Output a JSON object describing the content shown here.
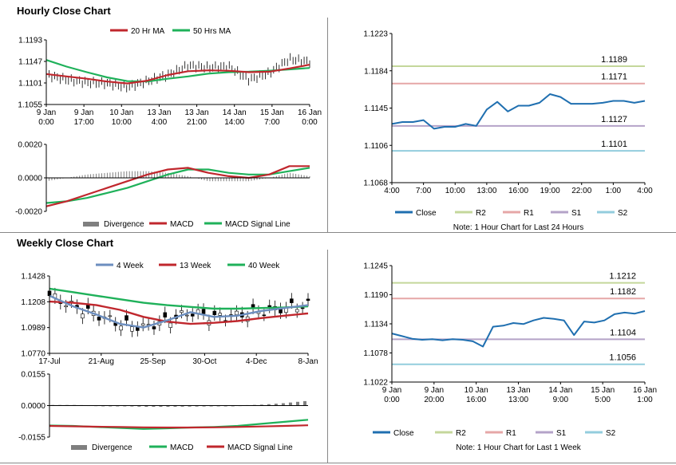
{
  "titles": {
    "hourly": "Hourly Close Chart",
    "weekly": "Weekly Close Chart"
  },
  "colors": {
    "ma20": "#c0272d",
    "ma50": "#1fb15a",
    "ma4": "#6c8ebf",
    "close": "#1f6fb0",
    "r2": "#c4d79b",
    "r1": "#e6a7a7",
    "s1": "#b4a3c8",
    "s2": "#93cddd",
    "divergence": "#7f7f7f",
    "candle": "#000000"
  },
  "chart_data": [
    {
      "id": "hourly_price",
      "type": "line",
      "x_ticks": [
        "9 Jan\n0:00",
        "9 Jan\n17:00",
        "10 Jan\n10:00",
        "13 Jan\n4:00",
        "13 Jan\n21:00",
        "14 Jan\n14:00",
        "15 Jan\n7:00",
        "16 Jan\n0:00"
      ],
      "y_ticks": [
        "1.1193",
        "1.1147",
        "1.1101",
        "1.1055"
      ],
      "ylim": [
        1.1055,
        1.1193
      ],
      "legend": [
        "20 Hr MA",
        "50 Hrs MA"
      ],
      "series": [
        {
          "name": "20 Hr MA",
          "values": [
            1.112,
            1.1115,
            1.111,
            1.1104,
            1.11,
            1.1106,
            1.1118,
            1.1126,
            1.1128,
            1.1127,
            1.1124,
            1.1125,
            1.1132,
            1.114
          ]
        },
        {
          "name": "50 Hrs MA",
          "values": [
            1.115,
            1.1136,
            1.1124,
            1.1113,
            1.1105,
            1.1104,
            1.111,
            1.1115,
            1.1121,
            1.1124,
            1.1125,
            1.1127,
            1.113,
            1.1133
          ]
        },
        {
          "name": "price",
          "values": [
            1.1118,
            1.1108,
            1.1102,
            1.11,
            1.1092,
            1.1105,
            1.1118,
            1.1138,
            1.1134,
            1.1136,
            1.1108,
            1.1122,
            1.1152,
            1.1146
          ]
        }
      ]
    },
    {
      "id": "hourly_macd",
      "type": "line",
      "y_ticks": [
        "0.0020",
        "0.0000",
        "-0.0020"
      ],
      "ylim": [
        -0.002,
        0.002
      ],
      "legend": [
        "Divergence",
        "MACD",
        "MACD Signal Line"
      ],
      "series": [
        {
          "name": "MACD",
          "values": [
            -0.0017,
            -0.0014,
            -0.001,
            -0.0006,
            -0.0002,
            0.0002,
            0.0005,
            0.0006,
            0.0003,
            0.0001,
            0.0,
            0.0002,
            0.0007,
            0.0007
          ]
        },
        {
          "name": "MACD Signal Line",
          "values": [
            -0.0015,
            -0.0014,
            -0.0012,
            -0.0009,
            -0.0006,
            -0.0002,
            0.0002,
            0.0005,
            0.0005,
            0.0003,
            0.0002,
            0.0002,
            0.0004,
            0.0006
          ]
        },
        {
          "name": "Divergence",
          "values": [
            -0.0002,
            0.0,
            0.0002,
            0.0003,
            0.0004,
            0.0004,
            0.0003,
            0.0001,
            -0.0002,
            -0.0002,
            -0.0002,
            0.0,
            0.0003,
            0.0001
          ]
        }
      ]
    },
    {
      "id": "hourly_levels",
      "type": "line",
      "x_ticks": [
        "4:00",
        "7:00",
        "10:00",
        "13:00",
        "16:00",
        "19:00",
        "22:00",
        "1:00",
        "4:00"
      ],
      "y_ticks": [
        "1.1223",
        "1.1184",
        "1.1145",
        "1.1106",
        "1.1068"
      ],
      "ylim": [
        1.1068,
        1.1223
      ],
      "level_labels": [
        "1.1189",
        "1.1171",
        "1.1127",
        "1.1101"
      ],
      "levels": {
        "R2": 1.1189,
        "R1": 1.1171,
        "S1": 1.1127,
        "S2": 1.1101
      },
      "legend": [
        "Close",
        "R2",
        "R1",
        "S1",
        "S2"
      ],
      "note": "Note: 1 Hour Chart for Last 24 Hours",
      "series": [
        {
          "name": "Close",
          "values": [
            1.1129,
            1.1131,
            1.1131,
            1.1133,
            1.1124,
            1.1126,
            1.1126,
            1.1129,
            1.1127,
            1.1144,
            1.1152,
            1.1142,
            1.1148,
            1.1148,
            1.1151,
            1.116,
            1.1157,
            1.115,
            1.115,
            1.115,
            1.1151,
            1.1153,
            1.1153,
            1.1151,
            1.1153
          ]
        }
      ]
    },
    {
      "id": "weekly_price",
      "type": "line",
      "x_ticks": [
        "17-Jul",
        "21-Aug",
        "25-Sep",
        "30-Oct",
        "4-Dec",
        "8-Jan"
      ],
      "y_ticks": [
        "1.1428",
        "1.1208",
        "1.0989",
        "1.0770"
      ],
      "ylim": [
        1.077,
        1.1428
      ],
      "legend": [
        "4 Week",
        "13 Week",
        "40 Week"
      ],
      "series": [
        {
          "name": "4 Week",
          "values": [
            1.126,
            1.117,
            1.11,
            1.102,
            1.099,
            1.105,
            1.112,
            1.108,
            1.109,
            1.113,
            1.1155,
            1.118
          ]
        },
        {
          "name": "13 Week",
          "values": [
            1.121,
            1.12,
            1.118,
            1.114,
            1.108,
            1.104,
            1.102,
            1.103,
            1.1045,
            1.107,
            1.109,
            1.111
          ]
        },
        {
          "name": "40 Week",
          "values": [
            1.132,
            1.129,
            1.126,
            1.123,
            1.12,
            1.118,
            1.1165,
            1.115,
            1.115,
            1.1155,
            1.116,
            1.117
          ]
        }
      ]
    },
    {
      "id": "weekly_macd",
      "type": "line",
      "y_ticks": [
        "0.0155",
        "0.0000",
        "-0.0155"
      ],
      "ylim": [
        -0.0155,
        0.0155
      ],
      "legend": [
        "Divergence",
        "MACD",
        "MACD Signal Line"
      ],
      "series": [
        {
          "name": "MACD",
          "values": [
            -0.0098,
            -0.01,
            -0.0105,
            -0.011,
            -0.0115,
            -0.0112,
            -0.0108,
            -0.0105,
            -0.01,
            -0.009,
            -0.008,
            -0.007
          ]
        },
        {
          "name": "MACD Signal Line",
          "values": [
            -0.01,
            -0.0102,
            -0.0104,
            -0.0105,
            -0.0107,
            -0.0108,
            -0.0108,
            -0.0107,
            -0.0105,
            -0.0103,
            -0.01,
            -0.0097
          ]
        },
        {
          "name": "Divergence",
          "values": [
            0.0003,
            0.0003,
            0.0001,
            -0.0003,
            -0.0006,
            -0.0006,
            -0.0005,
            -0.0004,
            0.0001,
            0.0004,
            0.0011,
            0.0022
          ]
        }
      ]
    },
    {
      "id": "weekly_levels",
      "type": "line",
      "x_ticks": [
        "9 Jan\n0:00",
        "9 Jan\n20:00",
        "10 Jan\n16:00",
        "13 Jan\n13:00",
        "14 Jan\n9:00",
        "15 Jan\n5:00",
        "16 Jan\n1:00"
      ],
      "y_ticks": [
        "1.1245",
        "1.1190",
        "1.1134",
        "1.1078",
        "1.1022"
      ],
      "ylim": [
        1.1022,
        1.1245
      ],
      "level_labels": [
        "1.1212",
        "1.1182",
        "1.1104",
        "1.1056"
      ],
      "levels": {
        "R2": 1.1212,
        "R1": 1.1182,
        "S1": 1.1104,
        "S2": 1.1056
      },
      "legend": [
        "Close",
        "R2",
        "R1",
        "S1",
        "S2"
      ],
      "note": "Note: 1 Hour Chart for Last 1 Week",
      "series": [
        {
          "name": "Close",
          "values": [
            1.1115,
            1.111,
            1.1105,
            1.1103,
            1.1104,
            1.1102,
            1.1104,
            1.1103,
            1.11,
            1.109,
            1.1128,
            1.113,
            1.1135,
            1.1133,
            1.114,
            1.1145,
            1.1143,
            1.114,
            1.1112,
            1.1138,
            1.1136,
            1.114,
            1.1152,
            1.1155,
            1.1153,
            1.1158
          ]
        }
      ]
    }
  ]
}
